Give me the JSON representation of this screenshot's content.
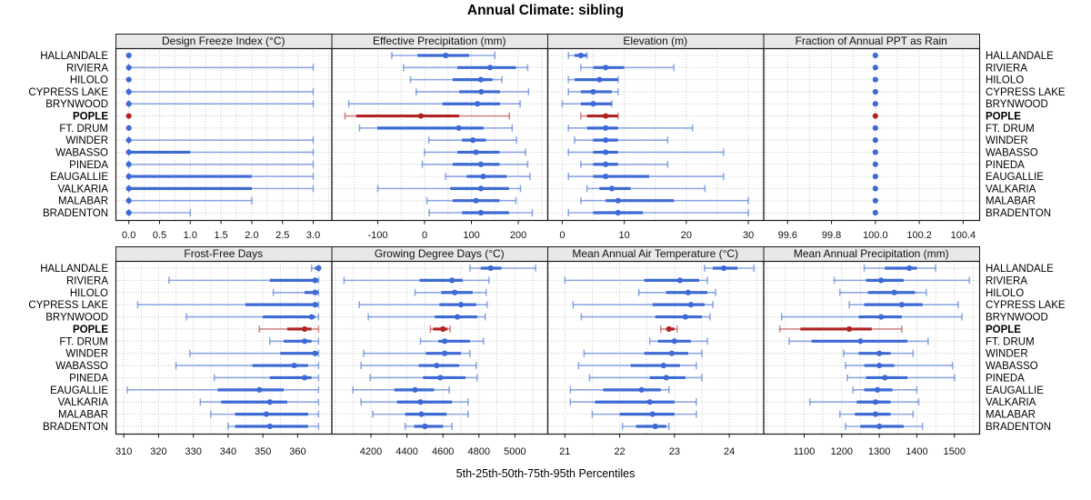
{
  "title": "Annual Climate: sibling",
  "footer": "5th-25th-50th-75th-95th Percentiles",
  "chart_data": {
    "type": "dotplot",
    "note": "Each row shows 5th-25th-50th-75th-95th percentile whiskers (thin line 5-95 with end caps, thick line 25-75, dot = median).",
    "categories": [
      "HALLANDALE",
      "RIVIERA",
      "HILOLO",
      "CYPRESS LAKE",
      "BRYNWOOD",
      "POPLE",
      "FT. DRUM",
      "WINDER",
      "WABASSO",
      "PINEDA",
      "EAUGALLIE",
      "VALKARIA",
      "MALABAR",
      "BRADENTON"
    ],
    "highlight_category": "POPLE",
    "percentiles": [
      "5th",
      "25th",
      "50th",
      "75th",
      "95th"
    ],
    "colors": {
      "series": "#3D6AD4",
      "series_light": "rgba(61,106,212,0.55)",
      "highlight": "#B22222",
      "highlight_light": "rgba(178,34,34,0.5)",
      "grid": "#C8C8C8",
      "strip_bg": "#E8E8E8",
      "border": "#1a1a1a",
      "text": "#111111"
    },
    "panels": [
      {
        "label": "Design Freeze Index (°C)",
        "xlim": [
          -0.217,
          3.295
        ],
        "ticks": [
          0,
          0.5,
          1,
          1.5,
          2,
          2.5,
          3
        ],
        "tick_labels": [
          "0.0",
          "0.5",
          "1.0",
          "1.5",
          "2.0",
          "2.5",
          "3.0"
        ],
        "grid_step": 0.25,
        "values": [
          [
            0,
            0,
            0,
            0,
            0
          ],
          [
            0,
            0,
            0,
            0,
            3
          ],
          [
            0,
            0,
            0,
            0,
            0
          ],
          [
            0,
            0,
            0,
            0,
            3
          ],
          [
            0,
            0,
            0,
            0,
            3
          ],
          [
            0,
            0,
            0,
            0,
            0
          ],
          [
            0,
            0,
            0,
            0,
            0
          ],
          [
            0,
            0,
            0,
            0,
            3
          ],
          [
            0,
            0,
            0,
            1,
            3
          ],
          [
            0,
            0,
            0,
            0,
            3
          ],
          [
            0,
            0,
            0,
            2,
            3
          ],
          [
            0,
            0,
            0,
            2,
            3
          ],
          [
            0,
            0,
            0,
            0,
            2
          ],
          [
            0,
            0,
            0,
            0,
            1
          ]
        ]
      },
      {
        "label": "Effective Precipitation (mm)",
        "xlim": [
          -199,
          262
        ],
        "ticks": [
          -100,
          0,
          100,
          200
        ],
        "tick_labels": [
          "-100",
          "0",
          "100",
          "200"
        ],
        "grid_step": 50,
        "values": [
          [
            -70,
            -15,
            45,
            95,
            150
          ],
          [
            -45,
            70,
            140,
            195,
            220
          ],
          [
            -30,
            60,
            120,
            145,
            165
          ],
          [
            -18,
            74,
            121,
            161,
            222
          ],
          [
            -162,
            38,
            113,
            161,
            204
          ],
          [
            -170,
            -146,
            -8,
            74,
            181
          ],
          [
            -139,
            -101,
            73,
            126,
            187
          ],
          [
            9,
            80,
            103,
            131,
            196
          ],
          [
            0,
            70,
            110,
            160,
            215
          ],
          [
            -5,
            60,
            120,
            160,
            220
          ],
          [
            45,
            90,
            125,
            175,
            225
          ],
          [
            -100,
            55,
            120,
            180,
            205
          ],
          [
            5,
            60,
            110,
            160,
            195
          ],
          [
            10,
            80,
            120,
            180,
            230
          ]
        ]
      },
      {
        "label": "Elevation (m)",
        "xlim": [
          -2.4,
          32.4
        ],
        "ticks": [
          0,
          10,
          20,
          30
        ],
        "tick_labels": [
          "0",
          "10",
          "20",
          "30"
        ],
        "grid_step": 5,
        "values": [
          [
            1,
            2,
            3,
            4,
            4
          ],
          [
            3,
            5,
            7,
            10,
            18
          ],
          [
            1,
            2,
            6,
            9,
            9
          ],
          [
            1,
            3,
            5,
            8,
            9
          ],
          [
            0,
            3,
            5,
            8,
            8
          ],
          [
            3,
            4,
            7,
            9,
            9
          ],
          [
            1,
            4,
            7,
            9,
            21
          ],
          [
            2,
            5,
            7,
            9,
            17
          ],
          [
            1,
            5,
            7,
            9,
            26
          ],
          [
            3,
            5,
            7,
            9,
            17
          ],
          [
            1,
            5,
            7,
            14,
            26
          ],
          [
            4,
            6,
            8,
            11,
            23
          ],
          [
            3,
            7,
            9,
            18,
            30
          ],
          [
            1,
            5,
            9,
            13,
            30
          ]
        ]
      },
      {
        "label": "Fraction of Annual PPT as Rain",
        "xlim": [
          99.489,
          100.473
        ],
        "ticks": [
          99.6,
          99.8,
          100.0,
          100.2,
          100.4
        ],
        "tick_labels": [
          "99.6",
          "99.8",
          "100.0",
          "100.2",
          "100.4"
        ],
        "grid_step": 0.1,
        "values": [
          [
            100,
            100,
            100,
            100,
            100
          ],
          [
            100,
            100,
            100,
            100,
            100
          ],
          [
            100,
            100,
            100,
            100,
            100
          ],
          [
            100,
            100,
            100,
            100,
            100
          ],
          [
            100,
            100,
            100,
            100,
            100
          ],
          [
            100,
            100,
            100,
            100,
            100
          ],
          [
            100,
            100,
            100,
            100,
            100
          ],
          [
            100,
            100,
            100,
            100,
            100
          ],
          [
            100,
            100,
            100,
            100,
            100
          ],
          [
            100,
            100,
            100,
            100,
            100
          ],
          [
            100,
            100,
            100,
            100,
            100
          ],
          [
            100,
            100,
            100,
            100,
            100
          ],
          [
            100,
            100,
            100,
            100,
            100
          ],
          [
            100,
            100,
            100,
            100,
            100
          ]
        ]
      },
      {
        "label": "Frost-Free Days",
        "xlim": [
          307.6,
          369.7
        ],
        "ticks": [
          310,
          320,
          330,
          340,
          350,
          360
        ],
        "tick_labels": [
          "310",
          "320",
          "330",
          "340",
          "350",
          "360"
        ],
        "grid_step": 5,
        "values": [
          [
            364,
            365,
            366,
            366,
            366
          ],
          [
            323,
            352,
            365,
            366,
            366
          ],
          [
            353,
            362,
            365,
            366,
            366
          ],
          [
            314,
            345,
            365,
            366,
            366
          ],
          [
            328,
            350,
            364,
            365,
            366
          ],
          [
            349,
            357,
            362,
            364,
            366
          ],
          [
            352,
            356,
            362,
            364,
            366
          ],
          [
            329,
            355,
            365,
            366,
            366
          ],
          [
            325,
            347,
            359,
            363,
            366
          ],
          [
            336,
            352,
            362,
            364,
            366
          ],
          [
            311,
            337,
            349,
            356,
            366
          ],
          [
            332,
            338,
            352,
            357,
            366
          ],
          [
            335,
            342,
            351,
            363,
            366
          ],
          [
            340,
            342,
            352,
            363,
            366
          ]
        ]
      },
      {
        "label": "Growing Degree Days (°C)",
        "xlim": [
          3980,
          5180
        ],
        "ticks": [
          4200,
          4400,
          4600,
          4800,
          5000
        ],
        "tick_labels": [
          "4200",
          "4400",
          "4600",
          "4800",
          "5000"
        ],
        "grid_step": 100,
        "values": [
          [
            4750,
            4810,
            4865,
            4925,
            5115
          ],
          [
            4050,
            4470,
            4650,
            4710,
            4855
          ],
          [
            4445,
            4590,
            4665,
            4765,
            4840
          ],
          [
            4135,
            4580,
            4700,
            4785,
            4845
          ],
          [
            4185,
            4555,
            4680,
            4790,
            4835
          ],
          [
            4530,
            4545,
            4600,
            4625,
            4640
          ],
          [
            4475,
            4575,
            4610,
            4750,
            4825
          ],
          [
            4160,
            4505,
            4610,
            4700,
            4750
          ],
          [
            4145,
            4465,
            4565,
            4690,
            4785
          ],
          [
            4195,
            4490,
            4585,
            4725,
            4790
          ],
          [
            4100,
            4330,
            4445,
            4550,
            4635
          ],
          [
            4145,
            4345,
            4475,
            4650,
            4740
          ],
          [
            4210,
            4390,
            4480,
            4620,
            4740
          ],
          [
            4390,
            4440,
            4500,
            4600,
            4650
          ]
        ]
      },
      {
        "label": "Mean Annual Air Temperature (°C)",
        "xlim": [
          20.68,
          24.62
        ],
        "ticks": [
          21,
          22,
          23,
          24
        ],
        "tick_labels": [
          "21",
          "22",
          "23",
          "24"
        ],
        "grid_step": 0.5,
        "values": [
          [
            23.55,
            23.7,
            23.9,
            24.15,
            24.45
          ],
          [
            21.0,
            22.45,
            23.1,
            23.45,
            23.6
          ],
          [
            22.35,
            22.85,
            23.25,
            23.6,
            23.75
          ],
          [
            21.15,
            22.6,
            23.3,
            23.55,
            23.7
          ],
          [
            21.3,
            22.65,
            23.2,
            23.5,
            23.65
          ],
          [
            22.75,
            22.85,
            22.9,
            23.0,
            23.05
          ],
          [
            22.55,
            22.7,
            23.0,
            23.3,
            23.6
          ],
          [
            21.35,
            22.45,
            22.95,
            23.25,
            23.5
          ],
          [
            21.25,
            22.2,
            22.8,
            23.1,
            23.4
          ],
          [
            21.45,
            22.55,
            22.85,
            23.2,
            23.5
          ],
          [
            21.1,
            21.7,
            22.4,
            22.75,
            22.9
          ],
          [
            21.1,
            21.55,
            22.55,
            23.0,
            23.4
          ],
          [
            21.5,
            22.0,
            22.6,
            23.0,
            23.4
          ],
          [
            22.05,
            22.3,
            22.65,
            22.85,
            22.9
          ]
        ]
      },
      {
        "label": "Mean Annual Precipitation (mm)",
        "xlim": [
          991,
          1566
        ],
        "ticks": [
          1100,
          1200,
          1300,
          1400,
          1500
        ],
        "tick_labels": [
          "1100",
          "1200",
          "1300",
          "1400",
          "1500"
        ],
        "grid_step": 50,
        "values": [
          [
            1260,
            1315,
            1380,
            1400,
            1450
          ],
          [
            1180,
            1265,
            1305,
            1365,
            1540
          ],
          [
            1195,
            1270,
            1340,
            1395,
            1425
          ],
          [
            1220,
            1260,
            1360,
            1415,
            1510
          ],
          [
            1040,
            1245,
            1305,
            1360,
            1520
          ],
          [
            1035,
            1090,
            1220,
            1280,
            1360
          ],
          [
            1060,
            1120,
            1250,
            1375,
            1430
          ],
          [
            1205,
            1245,
            1300,
            1330,
            1390
          ],
          [
            1210,
            1260,
            1300,
            1340,
            1495
          ],
          [
            1215,
            1265,
            1315,
            1375,
            1500
          ],
          [
            1230,
            1260,
            1295,
            1335,
            1400
          ],
          [
            1115,
            1240,
            1290,
            1330,
            1405
          ],
          [
            1195,
            1235,
            1290,
            1330,
            1390
          ],
          [
            1210,
            1250,
            1300,
            1365,
            1415
          ]
        ]
      }
    ]
  }
}
